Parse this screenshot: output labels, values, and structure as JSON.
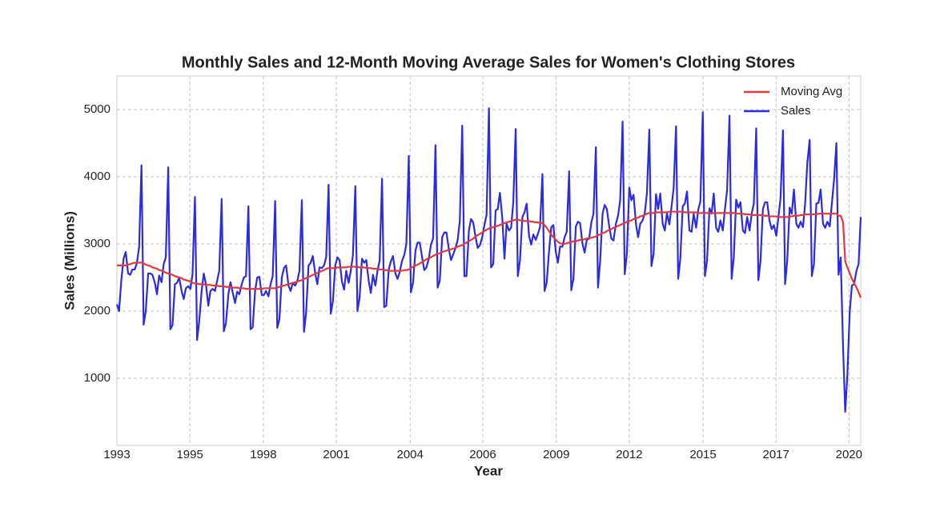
{
  "chart_data": {
    "type": "line",
    "title": "Monthly Sales and 12-Month Moving Average Sales for Women's Clothing Stores",
    "x_label": "Year",
    "y_label": "Sales (Millions)",
    "x": [
      1993.0,
      1993.08,
      1993.17,
      1993.25,
      1993.33,
      1993.42,
      1993.5,
      1993.58,
      1993.67,
      1993.75,
      1993.83,
      1993.92,
      1994.0,
      1994.08,
      1994.17,
      1994.25,
      1994.33,
      1994.42,
      1994.5,
      1994.58,
      1994.67,
      1994.75,
      1994.83,
      1994.92,
      1995.0,
      1995.08,
      1995.17,
      1995.25,
      1995.33,
      1995.42,
      1995.5,
      1995.58,
      1995.67,
      1995.75,
      1995.83,
      1995.92,
      1996.0,
      1996.08,
      1996.17,
      1996.25,
      1996.33,
      1996.42,
      1996.5,
      1996.58,
      1996.67,
      1996.75,
      1996.83,
      1996.92,
      1997.0,
      1997.08,
      1997.17,
      1997.25,
      1997.33,
      1997.42,
      1997.5,
      1997.58,
      1997.67,
      1997.75,
      1997.83,
      1997.92,
      1998.0,
      1998.08,
      1998.17,
      1998.25,
      1998.33,
      1998.42,
      1998.5,
      1998.58,
      1998.67,
      1998.75,
      1998.83,
      1998.92,
      1999.0,
      1999.08,
      1999.17,
      1999.25,
      1999.33,
      1999.42,
      1999.5,
      1999.58,
      1999.67,
      1999.75,
      1999.83,
      1999.92,
      2000.0,
      2000.08,
      2000.17,
      2000.25,
      2000.33,
      2000.42,
      2000.5,
      2000.58,
      2000.67,
      2000.75,
      2000.83,
      2000.92,
      2001.0,
      2001.08,
      2001.17,
      2001.25,
      2001.33,
      2001.42,
      2001.5,
      2001.58,
      2001.67,
      2001.75,
      2001.83,
      2001.92,
      2002.0,
      2002.08,
      2002.17,
      2002.25,
      2002.33,
      2002.42,
      2002.5,
      2002.58,
      2002.67,
      2002.75,
      2002.83,
      2002.92,
      2003.0,
      2003.08,
      2003.17,
      2003.25,
      2003.33,
      2003.42,
      2003.5,
      2003.58,
      2003.67,
      2003.75,
      2003.83,
      2003.92,
      2004.0,
      2004.08,
      2004.17,
      2004.25,
      2004.33,
      2004.42,
      2004.5,
      2004.58,
      2004.67,
      2004.75,
      2004.83,
      2004.92,
      2005.0,
      2005.08,
      2005.17,
      2005.25,
      2005.33,
      2005.42,
      2005.5,
      2005.58,
      2005.67,
      2005.75,
      2005.83,
      2005.92,
      2006.0,
      2006.08,
      2006.17,
      2006.25,
      2006.33,
      2006.42,
      2006.5,
      2006.58,
      2006.67,
      2006.75,
      2006.83,
      2006.92,
      2007.0,
      2007.08,
      2007.17,
      2007.25,
      2007.33,
      2007.42,
      2007.5,
      2007.58,
      2007.67,
      2007.75,
      2007.83,
      2007.92,
      2008.0,
      2008.08,
      2008.17,
      2008.25,
      2008.33,
      2008.42,
      2008.5,
      2008.58,
      2008.67,
      2008.75,
      2008.83,
      2008.92,
      2009.0,
      2009.08,
      2009.17,
      2009.25,
      2009.33,
      2009.42,
      2009.5,
      2009.58,
      2009.67,
      2009.75,
      2009.83,
      2009.92,
      2010.0,
      2010.08,
      2010.17,
      2010.25,
      2010.33,
      2010.42,
      2010.5,
      2010.58,
      2010.67,
      2010.75,
      2010.83,
      2010.92,
      2011.0,
      2011.08,
      2011.17,
      2011.25,
      2011.33,
      2011.42,
      2011.5,
      2011.58,
      2011.67,
      2011.75,
      2011.83,
      2011.92,
      2012.0,
      2012.08,
      2012.17,
      2012.25,
      2012.33,
      2012.42,
      2012.5,
      2012.58,
      2012.67,
      2012.75,
      2012.83,
      2012.92,
      2013.0,
      2013.08,
      2013.17,
      2013.25,
      2013.33,
      2013.42,
      2013.5,
      2013.58,
      2013.67,
      2013.75,
      2013.83,
      2013.92,
      2014.0,
      2014.08,
      2014.17,
      2014.25,
      2014.33,
      2014.42,
      2014.5,
      2014.58,
      2014.67,
      2014.75,
      2014.83,
      2014.92,
      2015.0,
      2015.08,
      2015.17,
      2015.25,
      2015.33,
      2015.42,
      2015.5,
      2015.58,
      2015.67,
      2015.75,
      2015.83,
      2015.92,
      2016.0,
      2016.08,
      2016.17,
      2016.25,
      2016.33,
      2016.42,
      2016.5,
      2016.58,
      2016.67,
      2016.75,
      2016.83,
      2016.92,
      2017.0,
      2017.08,
      2017.17,
      2017.25,
      2017.33,
      2017.42,
      2017.5,
      2017.58,
      2017.67,
      2017.75,
      2017.83,
      2017.92,
      2018.0,
      2018.08,
      2018.17,
      2018.25,
      2018.33,
      2018.42,
      2018.5,
      2018.58,
      2018.67,
      2018.75,
      2018.83,
      2018.92,
      2019.0,
      2019.08,
      2019.17,
      2019.25,
      2019.33,
      2019.42,
      2019.5,
      2019.58,
      2019.67,
      2019.75,
      2019.83,
      2019.92,
      2020.0,
      2020.08,
      2020.17,
      2020.25,
      2020.33,
      2020.42,
      2020.5,
      2020.58,
      2020.67,
      2020.75,
      2020.83
    ],
    "series": [
      {
        "name": "Moving Avg",
        "color": "#e5383b",
        "values": [
          2680,
          2680,
          2680,
          2680,
          2680,
          2690,
          2700,
          2710,
          2720,
          2720,
          2720,
          2720,
          2710,
          2690,
          2680,
          2670,
          2650,
          2640,
          2630,
          2610,
          2600,
          2590,
          2570,
          2560,
          2550,
          2540,
          2520,
          2510,
          2500,
          2490,
          2470,
          2460,
          2450,
          2440,
          2420,
          2410,
          2410,
          2400,
          2400,
          2400,
          2390,
          2390,
          2390,
          2380,
          2380,
          2380,
          2370,
          2370,
          2370,
          2360,
          2360,
          2360,
          2350,
          2350,
          2350,
          2340,
          2340,
          2340,
          2330,
          2330,
          2330,
          2330,
          2330,
          2330,
          2330,
          2330,
          2340,
          2340,
          2340,
          2340,
          2340,
          2340,
          2350,
          2360,
          2370,
          2380,
          2390,
          2400,
          2410,
          2420,
          2430,
          2440,
          2450,
          2460,
          2480,
          2490,
          2510,
          2520,
          2540,
          2550,
          2570,
          2580,
          2600,
          2610,
          2630,
          2640,
          2640,
          2640,
          2640,
          2650,
          2650,
          2650,
          2650,
          2650,
          2660,
          2660,
          2660,
          2660,
          2660,
          2650,
          2650,
          2650,
          2640,
          2640,
          2640,
          2630,
          2630,
          2630,
          2620,
          2620,
          2610,
          2610,
          2600,
          2600,
          2600,
          2600,
          2600,
          2600,
          2600,
          2610,
          2610,
          2620,
          2640,
          2660,
          2680,
          2690,
          2710,
          2730,
          2750,
          2770,
          2790,
          2800,
          2820,
          2840,
          2850,
          2860,
          2880,
          2890,
          2900,
          2910,
          2920,
          2930,
          2940,
          2960,
          2970,
          2980,
          3000,
          3020,
          3040,
          3060,
          3080,
          3110,
          3130,
          3150,
          3170,
          3190,
          3210,
          3230,
          3240,
          3250,
          3260,
          3270,
          3280,
          3300,
          3310,
          3320,
          3330,
          3340,
          3350,
          3360,
          3360,
          3350,
          3350,
          3340,
          3340,
          3340,
          3330,
          3330,
          3320,
          3320,
          3310,
          3310,
          3280,
          3240,
          3190,
          3140,
          3100,
          3060,
          3030,
          3010,
          3000,
          3000,
          3010,
          3020,
          3030,
          3040,
          3040,
          3050,
          3060,
          3060,
          3070,
          3080,
          3090,
          3090,
          3100,
          3110,
          3130,
          3140,
          3160,
          3170,
          3190,
          3210,
          3220,
          3240,
          3250,
          3270,
          3280,
          3300,
          3310,
          3330,
          3340,
          3350,
          3370,
          3380,
          3390,
          3410,
          3420,
          3430,
          3450,
          3460,
          3460,
          3460,
          3470,
          3470,
          3470,
          3470,
          3470,
          3470,
          3480,
          3480,
          3480,
          3480,
          3480,
          3480,
          3480,
          3470,
          3470,
          3470,
          3470,
          3470,
          3470,
          3460,
          3460,
          3460,
          3460,
          3460,
          3460,
          3460,
          3460,
          3460,
          3460,
          3460,
          3460,
          3460,
          3460,
          3460,
          3460,
          3460,
          3450,
          3450,
          3450,
          3450,
          3440,
          3440,
          3440,
          3430,
          3430,
          3430,
          3430,
          3430,
          3420,
          3420,
          3420,
          3410,
          3410,
          3410,
          3410,
          3400,
          3400,
          3400,
          3400,
          3400,
          3410,
          3410,
          3420,
          3420,
          3420,
          3430,
          3430,
          3440,
          3440,
          3440,
          3440,
          3440,
          3440,
          3450,
          3450,
          3450,
          3450,
          3450,
          3450,
          3450,
          3450,
          3450,
          3420,
          3420,
          3320,
          2740,
          2650,
          2560,
          2480,
          2420,
          2350,
          2280,
          2200
        ]
      },
      {
        "name": "Sales",
        "color": "#2b2bdf",
        "values": [
          2100,
          2000,
          2480,
          2780,
          2880,
          2560,
          2540,
          2620,
          2620,
          2720,
          2950,
          4170,
          1800,
          2000,
          2560,
          2560,
          2540,
          2420,
          2250,
          2530,
          2430,
          2700,
          2800,
          4140,
          1730,
          1790,
          2400,
          2420,
          2500,
          2300,
          2180,
          2340,
          2370,
          2330,
          2550,
          3700,
          1570,
          1850,
          2300,
          2560,
          2400,
          2080,
          2300,
          2330,
          2300,
          2450,
          2600,
          3670,
          1700,
          1820,
          2250,
          2430,
          2280,
          2120,
          2290,
          2250,
          2400,
          2500,
          2520,
          3560,
          1730,
          1760,
          2300,
          2500,
          2510,
          2240,
          2240,
          2300,
          2220,
          2400,
          2520,
          3640,
          1750,
          1880,
          2500,
          2640,
          2680,
          2380,
          2300,
          2420,
          2380,
          2450,
          2600,
          3650,
          1690,
          1980,
          2680,
          2720,
          2820,
          2560,
          2400,
          2650,
          2640,
          2680,
          2800,
          3880,
          1960,
          2140,
          2680,
          2800,
          2760,
          2440,
          2320,
          2600,
          2420,
          2600,
          2830,
          3860,
          2000,
          2200,
          2780,
          2720,
          2760,
          2450,
          2270,
          2540,
          2380,
          2600,
          2750,
          3970,
          2060,
          2080,
          2620,
          2740,
          2820,
          2560,
          2480,
          2580,
          2750,
          2830,
          3000,
          4310,
          2280,
          2420,
          2900,
          3020,
          3020,
          2800,
          2610,
          2650,
          2780,
          2990,
          3080,
          4470,
          2350,
          2450,
          3100,
          3170,
          3170,
          2920,
          2760,
          2840,
          2940,
          3060,
          3340,
          4760,
          2520,
          2520,
          3200,
          3370,
          3320,
          3100,
          2940,
          2980,
          3100,
          3280,
          3430,
          5020,
          2650,
          2700,
          3500,
          3520,
          3760,
          3380,
          2780,
          3300,
          3200,
          3240,
          3620,
          4710,
          2520,
          2750,
          3400,
          3470,
          3600,
          3120,
          2990,
          3140,
          3060,
          3150,
          3250,
          4040,
          2300,
          2420,
          2900,
          3250,
          3280,
          2880,
          2720,
          2960,
          2960,
          3100,
          3180,
          4080,
          2310,
          2480,
          3260,
          3330,
          3310,
          3000,
          2870,
          3060,
          3080,
          3320,
          3450,
          4440,
          2350,
          2740,
          3450,
          3580,
          3520,
          3260,
          3080,
          3050,
          3300,
          3420,
          3650,
          4820,
          2550,
          2850,
          3840,
          3650,
          3730,
          3300,
          3100,
          3300,
          3350,
          3460,
          3750,
          4700,
          2670,
          2850,
          3740,
          3520,
          3750,
          3300,
          3200,
          3460,
          3290,
          3550,
          3830,
          4750,
          2480,
          2780,
          3560,
          3600,
          3780,
          3200,
          3180,
          3450,
          3240,
          3510,
          3630,
          4960,
          2520,
          2750,
          3530,
          3450,
          3750,
          3240,
          3180,
          3350,
          3200,
          3520,
          3800,
          4910,
          2480,
          2800,
          3660,
          3540,
          3620,
          3200,
          3160,
          3400,
          3200,
          3450,
          3600,
          4720,
          2460,
          2750,
          3520,
          3620,
          3620,
          3340,
          3220,
          3280,
          3120,
          3400,
          3680,
          4690,
          2400,
          2750,
          3540,
          3450,
          3810,
          3300,
          3240,
          3330,
          3250,
          3600,
          4200,
          4550,
          2520,
          2700,
          3600,
          3610,
          3810,
          3300,
          3240,
          3330,
          3260,
          3600,
          3950,
          4500,
          2540,
          2800,
          1450,
          500,
          1050,
          2000,
          2380,
          2400,
          2600,
          2700,
          3400
        ]
      }
    ],
    "xlim": [
      1993,
      2020.83
    ],
    "xticks": [
      {
        "value": 1993,
        "label": "1993"
      },
      {
        "value": 1995.73,
        "label": "1995"
      },
      {
        "value": 1998.48,
        "label": "1998"
      },
      {
        "value": 2001.21,
        "label": "2001"
      },
      {
        "value": 2003.97,
        "label": "2004"
      },
      {
        "value": 2006.69,
        "label": "2006"
      },
      {
        "value": 2009.44,
        "label": "2009"
      },
      {
        "value": 2012.17,
        "label": "2012"
      },
      {
        "value": 2014.93,
        "label": "2015"
      },
      {
        "value": 2017.66,
        "label": "2017"
      },
      {
        "value": 2020.39,
        "label": "2020"
      }
    ],
    "ylim": [
      0,
      5500
    ],
    "yticks": [
      1000,
      2000,
      3000,
      4000,
      5000
    ],
    "grid": true,
    "legend": "upper right"
  }
}
